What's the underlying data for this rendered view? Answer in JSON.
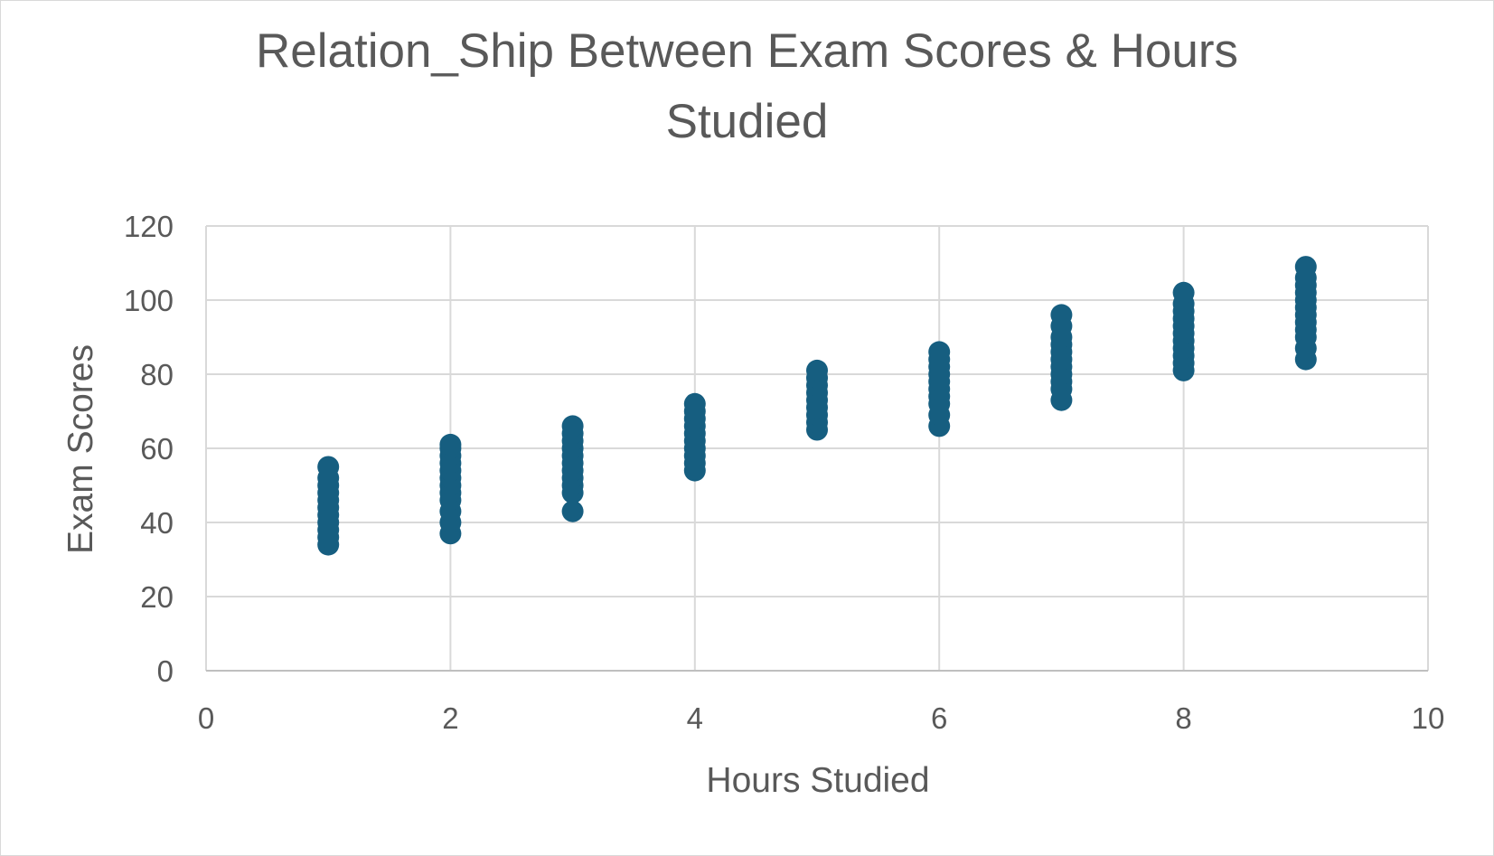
{
  "chart_data": {
    "type": "scatter",
    "title_lines": [
      "Relation_Ship Between Exam Scores & Hours",
      "Studied"
    ],
    "xlabel": "Hours Studied",
    "ylabel": "Exam Scores",
    "xlim": [
      0,
      10
    ],
    "ylim": [
      0,
      120
    ],
    "x_ticks": [
      "0",
      "2",
      "4",
      "6",
      "8",
      "10"
    ],
    "y_ticks": [
      "0",
      "20",
      "40",
      "60",
      "80",
      "100",
      "120"
    ],
    "grid": true,
    "legend": "none",
    "marker_color": "#165E80",
    "series": [
      {
        "points": [
          [
            1,
            34
          ],
          [
            1,
            36
          ],
          [
            1,
            38
          ],
          [
            1,
            40
          ],
          [
            1,
            42
          ],
          [
            1,
            44
          ],
          [
            1,
            46
          ],
          [
            1,
            48
          ],
          [
            1,
            50
          ],
          [
            1,
            52
          ],
          [
            1,
            55
          ],
          [
            2,
            37
          ],
          [
            2,
            40
          ],
          [
            2,
            43
          ],
          [
            2,
            46
          ],
          [
            2,
            48
          ],
          [
            2,
            50
          ],
          [
            2,
            52
          ],
          [
            2,
            54
          ],
          [
            2,
            56
          ],
          [
            2,
            58
          ],
          [
            2,
            60
          ],
          [
            2,
            61
          ],
          [
            3,
            43
          ],
          [
            3,
            48
          ],
          [
            3,
            50
          ],
          [
            3,
            52
          ],
          [
            3,
            54
          ],
          [
            3,
            56
          ],
          [
            3,
            58
          ],
          [
            3,
            60
          ],
          [
            3,
            62
          ],
          [
            3,
            64
          ],
          [
            3,
            66
          ],
          [
            4,
            54
          ],
          [
            4,
            56
          ],
          [
            4,
            58
          ],
          [
            4,
            60
          ],
          [
            4,
            62
          ],
          [
            4,
            64
          ],
          [
            4,
            66
          ],
          [
            4,
            68
          ],
          [
            4,
            70
          ],
          [
            4,
            72
          ],
          [
            5,
            65
          ],
          [
            5,
            67
          ],
          [
            5,
            69
          ],
          [
            5,
            71
          ],
          [
            5,
            73
          ],
          [
            5,
            75
          ],
          [
            5,
            77
          ],
          [
            5,
            79
          ],
          [
            5,
            81
          ],
          [
            6,
            66
          ],
          [
            6,
            69
          ],
          [
            6,
            72
          ],
          [
            6,
            74
          ],
          [
            6,
            76
          ],
          [
            6,
            78
          ],
          [
            6,
            80
          ],
          [
            6,
            82
          ],
          [
            6,
            84
          ],
          [
            6,
            86
          ],
          [
            7,
            73
          ],
          [
            7,
            76
          ],
          [
            7,
            78
          ],
          [
            7,
            80
          ],
          [
            7,
            82
          ],
          [
            7,
            84
          ],
          [
            7,
            86
          ],
          [
            7,
            88
          ],
          [
            7,
            90
          ],
          [
            7,
            93
          ],
          [
            7,
            96
          ],
          [
            8,
            81
          ],
          [
            8,
            83
          ],
          [
            8,
            85
          ],
          [
            8,
            87
          ],
          [
            8,
            89
          ],
          [
            8,
            91
          ],
          [
            8,
            93
          ],
          [
            8,
            95
          ],
          [
            8,
            97
          ],
          [
            8,
            99
          ],
          [
            8,
            102
          ],
          [
            9,
            84
          ],
          [
            9,
            87
          ],
          [
            9,
            90
          ],
          [
            9,
            92
          ],
          [
            9,
            94
          ],
          [
            9,
            96
          ],
          [
            9,
            98
          ],
          [
            9,
            100
          ],
          [
            9,
            102
          ],
          [
            9,
            104
          ],
          [
            9,
            106
          ],
          [
            9,
            109
          ]
        ]
      }
    ]
  }
}
